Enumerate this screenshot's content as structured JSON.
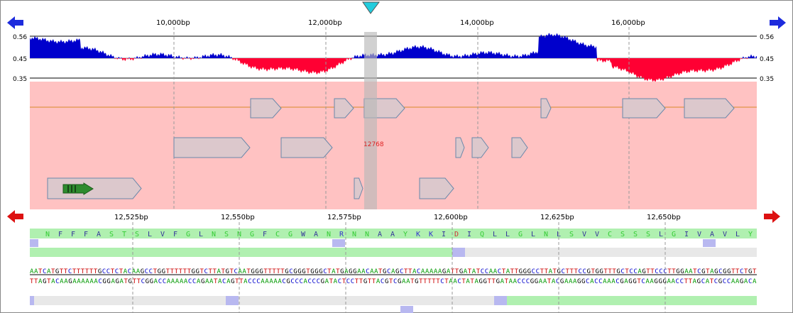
{
  "top_axis": {
    "ticks": [
      "10,000bp",
      "12,000bp",
      "14,000bp",
      "16,000bp"
    ]
  },
  "gc_plot": {
    "scale_max": "0.56",
    "scale_mid": "0.45",
    "scale_min": "0.35",
    "above_color": "#0000cc",
    "below_color": "#ff0033"
  },
  "cursor": {
    "position_label": "12768",
    "marker_color": "#22ccdd"
  },
  "bottom_axis": {
    "ticks": [
      "12,525bp",
      "12,550bp",
      "12,575bp",
      "12,600bp",
      "12,625bp",
      "12,650bp"
    ]
  },
  "translation": {
    "residues": [
      "N",
      "F",
      "F",
      "F",
      "A",
      "S",
      "T",
      "S",
      "L",
      "V",
      "F",
      "G",
      "L",
      "N",
      "S",
      "N",
      "G",
      "F",
      "C",
      "G",
      "W",
      "A",
      "N",
      "R",
      "N",
      "N",
      "A",
      "A",
      "Y",
      "K",
      "K",
      "I",
      "D",
      "I",
      "Q",
      "L",
      "L",
      "G",
      "L",
      "N",
      "L",
      "S",
      "V",
      "V",
      "C",
      "S",
      "S",
      "S",
      "L",
      "G",
      "I",
      "V",
      "A",
      "V",
      "L",
      "Y"
    ]
  },
  "sequence": {
    "forward": "AATCATGTTCTTTTTTGCCTCTACAAGCCTGGTTTTTTGGTCTTATGTCAATGGGTTTTTGCGGGTGGGCTATGAGGAACAATGCAGCTTACAAAAAGATTGATATCCAACTATTGGGCCTTATGCTTTCCGTGGTTTGCTCCAGTTCCCTTGGAATCGTAGCGGTTCTGT",
    "reverse": "TTAGTACAAGAAAAAACGGAGATGTTCGGACCAAAAACCAGAATACAGTTACCCAAAAACGCCCACCCGATACTCCTTGTTACGTCGAATGTTTTTCTAACTATAGGTTGATAACCCGGAATACGAAAGGCACCAAACGAGGTCAAGGGAACCTTAGCATCGCCAAGACA"
  },
  "colors": {
    "track_background": "#ffc2c2",
    "feature_fill": "#dcc8cc",
    "feature_stroke": "#6a88aa",
    "frame_bar": "#b0f0b0",
    "stop_box": "#b8b8f0",
    "empty_bar": "#e8e8e8",
    "nav_left_top": "#1d2bdd",
    "nav_red": "#dd1111"
  },
  "icons": {
    "nav_left_top": "arrow-left-icon",
    "nav_right_top": "arrow-right-icon",
    "nav_left_bottom": "arrow-left-icon",
    "nav_right_bottom": "arrow-right-icon",
    "cursor_marker": "triangle-down-icon"
  }
}
